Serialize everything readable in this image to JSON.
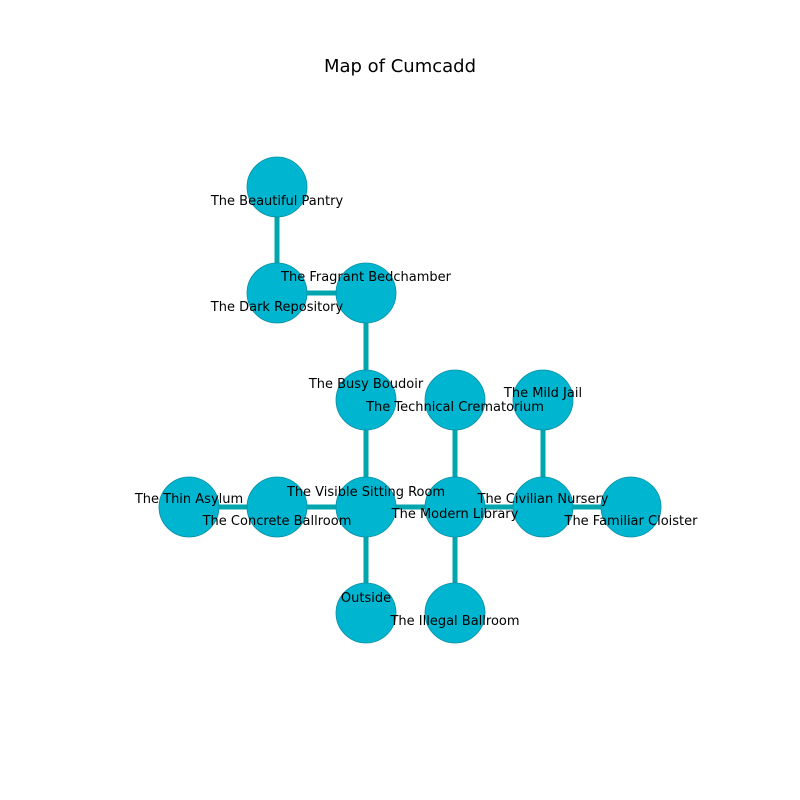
{
  "title": "Map of Cumcadd",
  "colors": {
    "node_fill": "#00b5cf",
    "node_stroke": "#0a8fa3",
    "edge": "#00a6ad"
  },
  "rooms": [
    {
      "id": "beautiful-pantry",
      "name": "The Beautiful Pantry"
    },
    {
      "id": "dark-repository",
      "name": "The Dark Repository"
    },
    {
      "id": "fragrant-bedchamber",
      "name": "The Fragrant Bedchamber"
    },
    {
      "id": "busy-boudoir",
      "name": "The Busy Boudoir"
    },
    {
      "id": "technical-crematorium",
      "name": "The Technical Crematorium"
    },
    {
      "id": "mild-jail",
      "name": "The Mild Jail"
    },
    {
      "id": "thin-asylum",
      "name": "The Thin Asylum"
    },
    {
      "id": "concrete-ballroom",
      "name": "The Concrete Ballroom"
    },
    {
      "id": "visible-sitting-room",
      "name": "The Visible Sitting Room"
    },
    {
      "id": "modern-library",
      "name": "The Modern Library"
    },
    {
      "id": "civilian-nursery",
      "name": "The Civilian Nursery"
    },
    {
      "id": "familiar-cloister",
      "name": "The Familiar Cloister"
    },
    {
      "id": "outside",
      "name": "Outside"
    },
    {
      "id": "illegal-ballroom",
      "name": "The Illegal Ballroom"
    }
  ],
  "connections": [
    [
      "beautiful-pantry",
      "dark-repository"
    ],
    [
      "dark-repository",
      "fragrant-bedchamber"
    ],
    [
      "fragrant-bedchamber",
      "busy-boudoir"
    ],
    [
      "busy-boudoir",
      "visible-sitting-room"
    ],
    [
      "thin-asylum",
      "concrete-ballroom"
    ],
    [
      "concrete-ballroom",
      "visible-sitting-room"
    ],
    [
      "visible-sitting-room",
      "modern-library"
    ],
    [
      "visible-sitting-room",
      "outside"
    ],
    [
      "technical-crematorium",
      "modern-library"
    ],
    [
      "modern-library",
      "civilian-nursery"
    ],
    [
      "modern-library",
      "illegal-ballroom"
    ],
    [
      "mild-jail",
      "civilian-nursery"
    ],
    [
      "civilian-nursery",
      "familiar-cloister"
    ]
  ]
}
